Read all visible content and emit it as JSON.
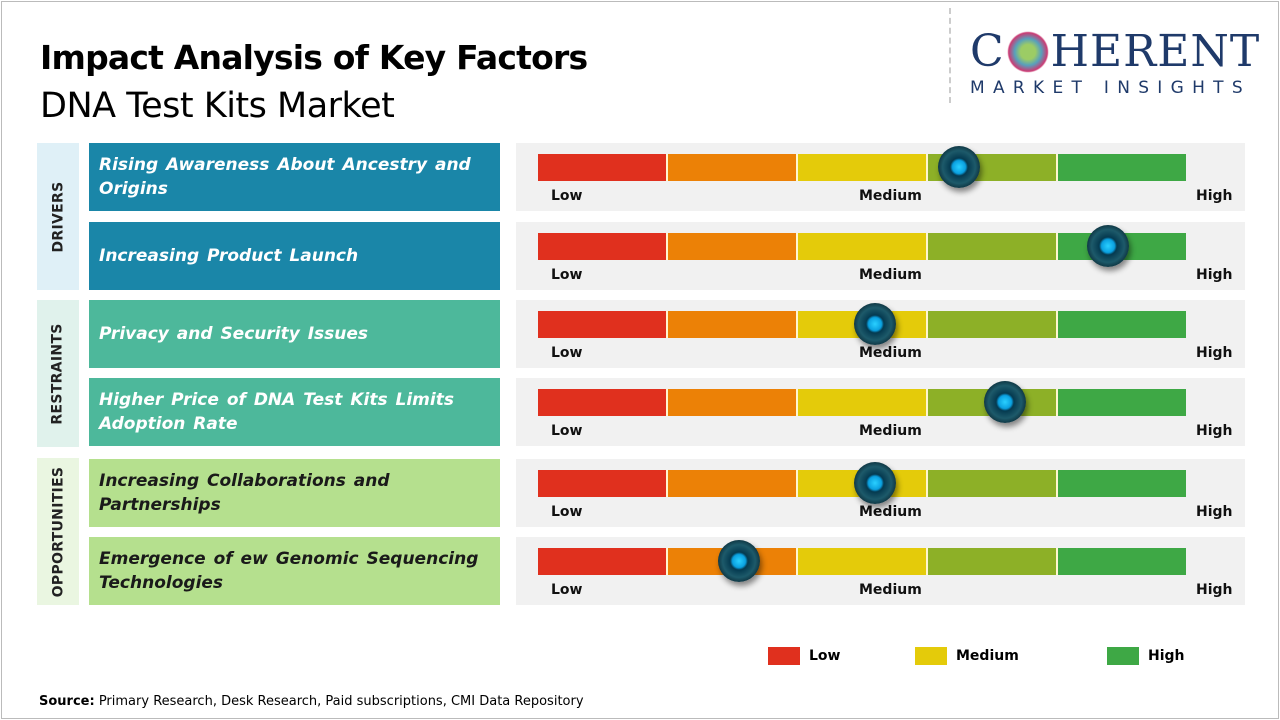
{
  "title": "Impact Analysis of Key Factors",
  "subtitle": "DNA Test Kits Market",
  "logo": {
    "main": "COHERENT",
    "sub": "MARKET INSIGHTS"
  },
  "colors": {
    "low": "#e0301e",
    "low_medium": "#ec8106",
    "medium": "#e4cb0a",
    "medium_high": "#8db027",
    "high": "#3ea845"
  },
  "scale_labels": {
    "low": "Low",
    "medium": "Medium",
    "high": "High"
  },
  "categories": [
    {
      "label": "DRIVERS",
      "panel_color": "#dff0f7",
      "box_color": "#1a86a8",
      "text_color": "#ffffff"
    },
    {
      "label": "RESTRAINTS",
      "panel_color": "#e0f2ec",
      "box_color": "#4db89b",
      "text_color": "#ffffff"
    },
    {
      "label": "OPPORTUNITIES",
      "panel_color": "#eaf6e1",
      "box_color": "#b5e08e",
      "text_color": "#1a1a1a"
    }
  ],
  "factors": [
    {
      "category": 0,
      "label": "Rising Awareness  About Ancestry and Origins",
      "impact": 0.65
    },
    {
      "category": 0,
      "label": "Increasing Product Launch",
      "impact": 0.88
    },
    {
      "category": 1,
      "label": "Privacy and Security Issues",
      "impact": 0.52
    },
    {
      "category": 1,
      "label": "Higher Price of DNA Test Kits Limits Adoption Rate",
      "impact": 0.72
    },
    {
      "category": 2,
      "label": "Increasing Collaborations  and Partnerships",
      "impact": 0.52
    },
    {
      "category": 2,
      "label": "Emergence  of ew Genomic Sequencing Technologies",
      "impact": 0.31
    }
  ],
  "legend": [
    {
      "label": "Low",
      "color": "#e0301e"
    },
    {
      "label": "Medium",
      "color": "#e4cb0a"
    },
    {
      "label": "High",
      "color": "#3ea845"
    }
  ],
  "source": {
    "label": "Source:",
    "text": " Primary Research, Desk Research, Paid subscriptions, CMI Data Repository"
  }
}
